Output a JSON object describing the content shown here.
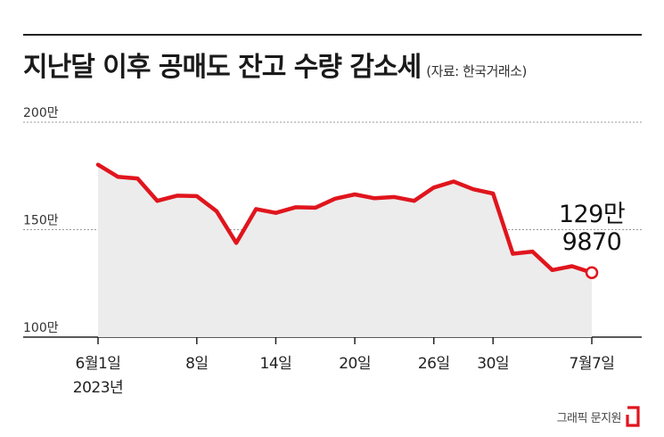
{
  "header": {
    "title": "지난달 이후 공매도 잔고 수량 감소세",
    "source": "(자료: 한국거래소)"
  },
  "chart_data": {
    "type": "area",
    "title": "지난달 이후 공매도 잔고 수량 감소세",
    "xlabel": "",
    "ylabel": "",
    "ylim": [
      100,
      200
    ],
    "y_unit": "만",
    "y_ticks": [
      {
        "value": 200,
        "label": "200만"
      },
      {
        "value": 150,
        "label": "150만"
      },
      {
        "value": 100,
        "label": "100만"
      }
    ],
    "x_ticks": [
      {
        "index": 0,
        "label": "6월1일",
        "sublabel": "2023년"
      },
      {
        "index": 5,
        "label": "8일"
      },
      {
        "index": 9,
        "label": "14일"
      },
      {
        "index": 13,
        "label": "20일"
      },
      {
        "index": 17,
        "label": "26일"
      },
      {
        "index": 20,
        "label": "30일"
      },
      {
        "index": 25,
        "label": "7월7일"
      }
    ],
    "grid": true,
    "values": [
      180.2,
      174.6,
      173.8,
      163.4,
      165.8,
      165.6,
      158.6,
      143.8,
      159.6,
      157.8,
      160.4,
      160.2,
      164.4,
      166.4,
      164.6,
      165.2,
      163.4,
      169.6,
      172.4,
      168.8,
      166.8,
      138.8,
      139.8,
      131.2,
      133.0,
      129.987
    ],
    "last_point_label": [
      "129만",
      "9870"
    ],
    "line_color": "#e0151d",
    "area_color": "#ececec"
  },
  "footer": {
    "credit": "그래픽 문지원"
  }
}
